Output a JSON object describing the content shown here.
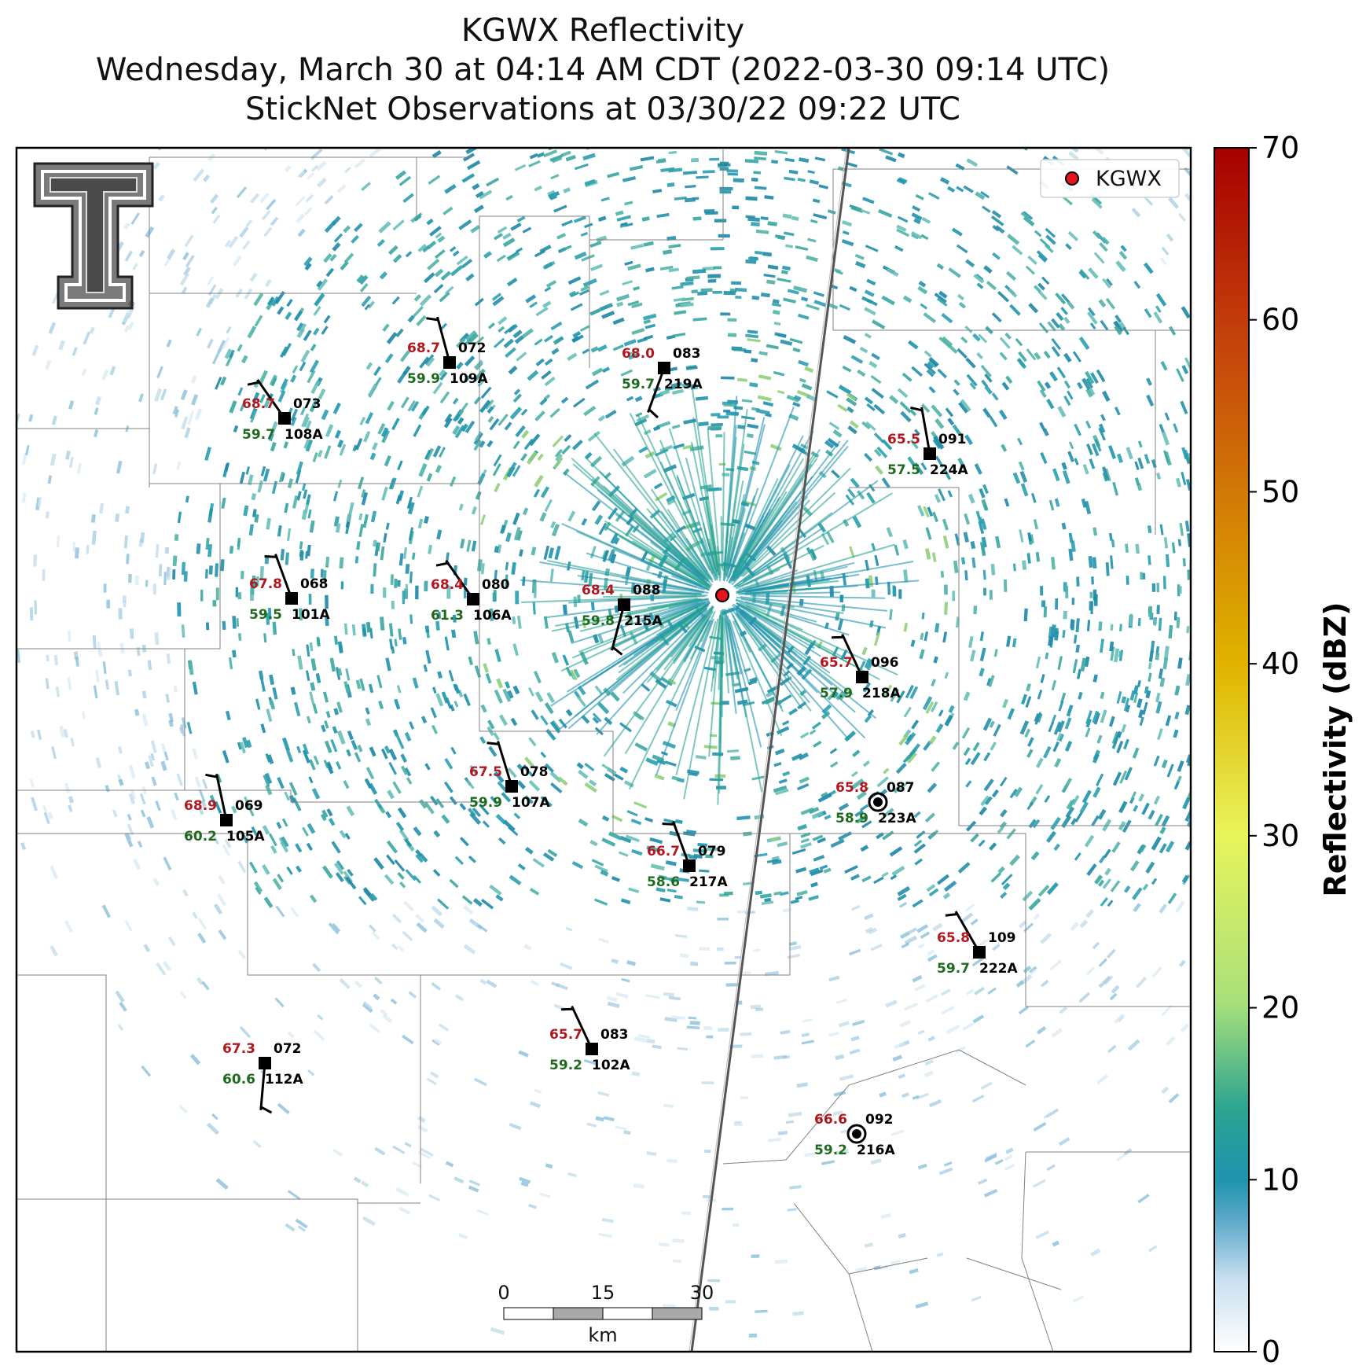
{
  "title": {
    "line1": "KGWX Reflectivity",
    "line2": "Wednesday, March 30 at 04:14 AM CDT (2022-03-30 09:14 UTC)",
    "line3": "StickNet Observations at 03/30/22 09:22 UTC"
  },
  "legend": {
    "label": "KGWX"
  },
  "radar": {
    "name": "KGWX",
    "color": "#e8141c"
  },
  "colorbar": {
    "label": "Reflectivity (dBZ)",
    "min": 0,
    "max": 70,
    "ticks": [
      "0",
      "10",
      "20",
      "30",
      "40",
      "50",
      "60",
      "70"
    ]
  },
  "scalebar": {
    "labels": [
      "0",
      "15",
      "30"
    ],
    "unit": "km"
  },
  "logo": {
    "name": "texas-tech-logo"
  },
  "colors": {
    "temp": "#b0171f",
    "dewpoint": "#1e6b1e",
    "station": "#000000",
    "radar": "#e8141c"
  },
  "stations": [
    {
      "id": "109A",
      "temp": "68.7",
      "dew": "59.9",
      "pres": "072",
      "dir": 345,
      "spd": 5,
      "calm": false
    },
    {
      "id": "219A",
      "temp": "68.0",
      "dew": "59.7",
      "pres": "083",
      "dir": 200,
      "spd": 5,
      "calm": false
    },
    {
      "id": "108A",
      "temp": "68.7",
      "dew": "59.7",
      "pres": "073",
      "dir": 325,
      "spd": 5,
      "calm": false
    },
    {
      "id": "224A",
      "temp": "65.5",
      "dew": "57.5",
      "pres": "091",
      "dir": 350,
      "spd": 5,
      "calm": false
    },
    {
      "id": "101A",
      "temp": "67.8",
      "dew": "59.5",
      "pres": "068",
      "dir": 340,
      "spd": 5,
      "calm": false
    },
    {
      "id": "106A",
      "temp": "68.4",
      "dew": "61.3",
      "pres": "080",
      "dir": 325,
      "spd": 5,
      "calm": false
    },
    {
      "id": "215A",
      "temp": "68.4",
      "dew": "59.8",
      "pres": "088",
      "dir": 195,
      "spd": 5,
      "calm": false
    },
    {
      "id": "218A",
      "temp": "65.7",
      "dew": "57.9",
      "pres": "096",
      "dir": 335,
      "spd": 5,
      "calm": false
    },
    {
      "id": "223A",
      "temp": "65.8",
      "dew": "58.9",
      "pres": "087",
      "dir": 0,
      "spd": 0,
      "calm": true
    },
    {
      "id": "105A",
      "temp": "68.9",
      "dew": "60.2",
      "pres": "069",
      "dir": 348,
      "spd": 5,
      "calm": false
    },
    {
      "id": "107A",
      "temp": "67.5",
      "dew": "59.9",
      "pres": "078",
      "dir": 343,
      "spd": 5,
      "calm": false
    },
    {
      "id": "217A",
      "temp": "66.7",
      "dew": "58.6",
      "pres": "079",
      "dir": 340,
      "spd": 5,
      "calm": false
    },
    {
      "id": "222A",
      "temp": "65.8",
      "dew": "59.7",
      "pres": "109",
      "dir": 330,
      "spd": 5,
      "calm": false
    },
    {
      "id": "112A",
      "temp": "67.3",
      "dew": "60.6",
      "pres": "072",
      "dir": 185,
      "spd": 5,
      "calm": false
    },
    {
      "id": "102A",
      "temp": "65.7",
      "dew": "59.2",
      "pres": "083",
      "dir": 335,
      "spd": 5,
      "calm": false
    },
    {
      "id": "216A",
      "temp": "66.6",
      "dew": "59.2",
      "pres": "092",
      "dir": 0,
      "spd": 0,
      "calm": true
    }
  ]
}
